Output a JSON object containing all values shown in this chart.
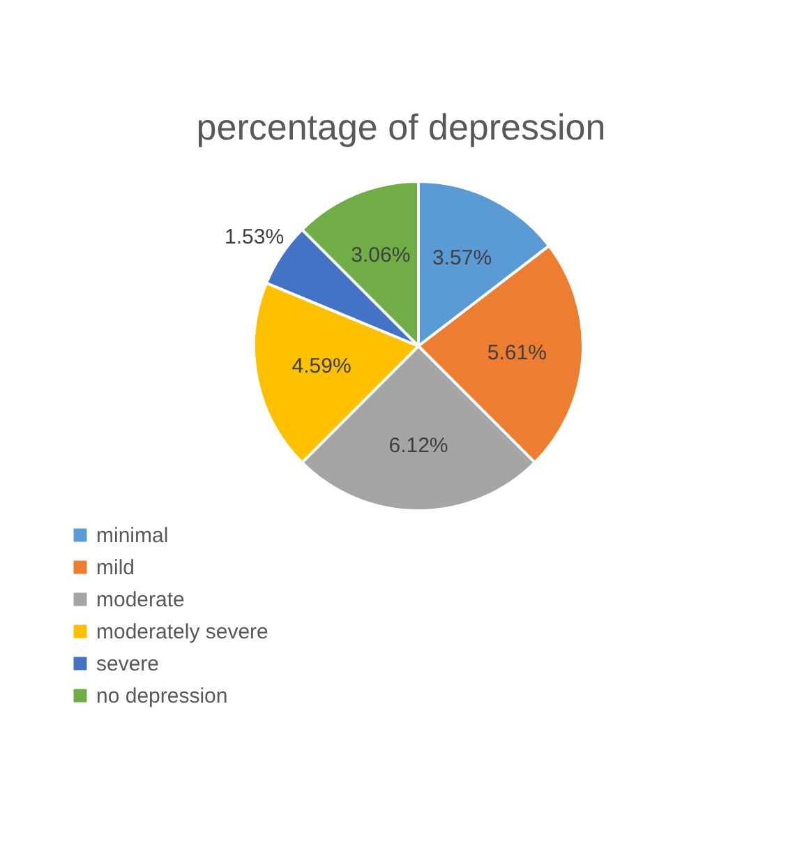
{
  "chart_data": {
    "type": "pie",
    "title": "percentage of depression",
    "categories": [
      "minimal",
      "mild",
      "moderate",
      "moderately severe",
      "severe",
      "no depression"
    ],
    "values": [
      3.57,
      5.61,
      6.12,
      4.59,
      1.53,
      3.06
    ],
    "value_labels": [
      "3.57%",
      "5.61%",
      "6.12%",
      "4.59%",
      "1.53%",
      "3.06%"
    ],
    "colors": [
      "#5b9bd5",
      "#ed7d31",
      "#a5a5a5",
      "#ffc000",
      "#4472c4",
      "#70ad47"
    ],
    "legend": "bottom left"
  }
}
